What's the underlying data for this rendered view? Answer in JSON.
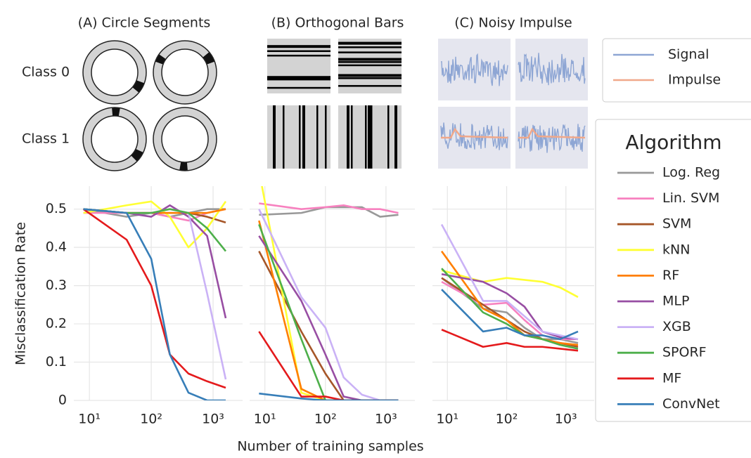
{
  "row_labels": [
    "Class 0",
    "Class 1"
  ],
  "illustration_legend": [
    {
      "name": "Signal",
      "color": "#8ea6d4"
    },
    {
      "name": "Impulse",
      "color": "#f0a88a"
    }
  ],
  "chart_data": [
    {
      "type": "line",
      "title": "(A) Circle Segments",
      "ylabel": "Misclassification Rate",
      "log_x": true,
      "grid": true,
      "x": [
        8,
        40,
        100,
        200,
        400,
        800,
        1600
      ],
      "xlim": [
        5.6,
        3000
      ],
      "ylim": [
        0,
        0.56
      ],
      "xticks": [
        {
          "value": 10,
          "label": "10¹"
        },
        {
          "value": 100,
          "label": "10²"
        },
        {
          "value": 1000,
          "label": "10³"
        }
      ],
      "yticks": [
        0,
        0.1,
        0.2,
        0.3,
        0.4,
        0.5
      ],
      "series": [
        {
          "name": "Log. Reg",
          "color": "#999999",
          "values": [
            0.5,
            0.48,
            0.49,
            0.48,
            0.49,
            0.5,
            0.5
          ]
        },
        {
          "name": "Lin. SVM",
          "color": "#f781bf",
          "values": [
            0.49,
            0.49,
            0.49,
            0.48,
            0.47,
            0.49,
            0.5
          ]
        },
        {
          "name": "SVM",
          "color": "#a65628",
          "values": [
            0.5,
            0.49,
            0.49,
            0.49,
            0.49,
            0.48,
            0.465
          ]
        },
        {
          "name": "kNN",
          "color": "#ffff33",
          "values": [
            0.49,
            0.51,
            0.52,
            0.48,
            0.4,
            0.45,
            0.52
          ]
        },
        {
          "name": "RF",
          "color": "#ff7f00",
          "values": [
            0.5,
            0.49,
            0.49,
            0.49,
            0.49,
            0.49,
            0.5
          ]
        },
        {
          "name": "MLP",
          "color": "#984ea3",
          "values": [
            0.5,
            0.49,
            0.48,
            0.51,
            0.48,
            0.43,
            0.215
          ]
        },
        {
          "name": "XGB",
          "color": "#cab2f6",
          "values": [
            0.5,
            0.49,
            0.49,
            0.5,
            0.49,
            0.28,
            0.055
          ]
        },
        {
          "name": "SPORF",
          "color": "#4daf4a",
          "values": [
            0.5,
            0.49,
            0.49,
            0.5,
            0.49,
            0.45,
            0.39
          ]
        },
        {
          "name": "MF",
          "color": "#e41a1c",
          "values": [
            0.5,
            0.42,
            0.3,
            0.12,
            0.07,
            0.05,
            0.033
          ]
        },
        {
          "name": "ConvNet",
          "color": "#377eb8",
          "values": [
            0.5,
            0.49,
            0.37,
            0.12,
            0.02,
            0.0,
            0.0
          ]
        }
      ]
    },
    {
      "type": "line",
      "title": "(B) Orthogonal Bars",
      "xlabel": "Number of training samples",
      "log_x": true,
      "grid": true,
      "x": [
        8,
        40,
        100,
        200,
        400,
        800,
        1600
      ],
      "xlim": [
        5.6,
        3000
      ],
      "ylim": [
        0,
        0.56
      ],
      "xticks": [
        {
          "value": 10,
          "label": "10¹"
        },
        {
          "value": 100,
          "label": "10²"
        },
        {
          "value": 1000,
          "label": "10³"
        }
      ],
      "yticks": [
        0,
        0.1,
        0.2,
        0.3,
        0.4,
        0.5
      ],
      "series": [
        {
          "name": "Log. Reg",
          "color": "#999999",
          "values": [
            0.485,
            0.49,
            0.505,
            0.505,
            0.505,
            0.48,
            0.485
          ]
        },
        {
          "name": "Lin. SVM",
          "color": "#f781bf",
          "values": [
            0.515,
            0.5,
            0.505,
            0.51,
            0.5,
            0.5,
            0.49
          ]
        },
        {
          "name": "SVM",
          "color": "#a65628",
          "values": [
            0.39,
            0.18,
            0.07,
            0.0,
            0.0,
            0.0,
            0.0
          ]
        },
        {
          "name": "kNN",
          "color": "#ffff33",
          "values": [
            0.6,
            0.02,
            0.0,
            0.0,
            0.0,
            0.0,
            0.0
          ]
        },
        {
          "name": "RF",
          "color": "#ff7f00",
          "values": [
            0.47,
            0.03,
            0.0,
            0.0,
            0.0,
            0.0,
            0.0
          ]
        },
        {
          "name": "MLP",
          "color": "#984ea3",
          "values": [
            0.43,
            0.26,
            0.12,
            0.01,
            0.0,
            0.0,
            0.0
          ]
        },
        {
          "name": "XGB",
          "color": "#cab2f6",
          "values": [
            0.5,
            0.27,
            0.19,
            0.06,
            0.015,
            0.0,
            0.0
          ]
        },
        {
          "name": "SPORF",
          "color": "#4daf4a",
          "values": [
            0.46,
            0.16,
            0.0,
            0.0,
            0.0,
            0.0,
            0.0
          ]
        },
        {
          "name": "MF",
          "color": "#e41a1c",
          "values": [
            0.18,
            0.01,
            0.01,
            0.0,
            0.0,
            0.0,
            0.0
          ]
        },
        {
          "name": "ConvNet",
          "color": "#377eb8",
          "values": [
            0.018,
            0.005,
            0.0,
            0.0,
            0.0,
            0.0,
            0.0
          ]
        }
      ]
    },
    {
      "type": "line",
      "title": "(C) Noisy Impulse",
      "legend_title": "Algorithm",
      "log_x": true,
      "grid": true,
      "x": [
        8,
        40,
        100,
        200,
        400,
        800,
        1600
      ],
      "xlim": [
        5.6,
        3000
      ],
      "ylim": [
        0,
        0.56
      ],
      "xticks": [
        {
          "value": 10,
          "label": "10¹"
        },
        {
          "value": 100,
          "label": "10²"
        },
        {
          "value": 1000,
          "label": "10³"
        }
      ],
      "yticks": [
        0,
        0.1,
        0.2,
        0.3,
        0.4,
        0.5
      ],
      "series": [
        {
          "name": "Log. Reg",
          "color": "#999999",
          "values": [
            0.32,
            0.24,
            0.23,
            0.19,
            0.16,
            0.16,
            0.15
          ]
        },
        {
          "name": "Lin. SVM",
          "color": "#f781bf",
          "values": [
            0.31,
            0.25,
            0.255,
            0.21,
            0.17,
            0.16,
            0.16
          ]
        },
        {
          "name": "SVM",
          "color": "#a65628",
          "values": [
            0.32,
            0.25,
            0.21,
            0.18,
            0.16,
            0.15,
            0.14
          ]
        },
        {
          "name": "kNN",
          "color": "#ffff33",
          "values": [
            0.34,
            0.31,
            0.32,
            0.315,
            0.31,
            0.295,
            0.27
          ]
        },
        {
          "name": "RF",
          "color": "#ff7f00",
          "values": [
            0.39,
            0.24,
            0.21,
            0.17,
            0.16,
            0.15,
            0.145
          ]
        },
        {
          "name": "MLP",
          "color": "#984ea3",
          "values": [
            0.33,
            0.31,
            0.28,
            0.245,
            0.18,
            0.165,
            0.16
          ]
        },
        {
          "name": "XGB",
          "color": "#cab2f6",
          "values": [
            0.46,
            0.26,
            0.26,
            0.22,
            0.18,
            0.17,
            0.16
          ]
        },
        {
          "name": "SPORF",
          "color": "#4daf4a",
          "values": [
            0.345,
            0.23,
            0.2,
            0.17,
            0.16,
            0.145,
            0.135
          ]
        },
        {
          "name": "MF",
          "color": "#e41a1c",
          "values": [
            0.185,
            0.14,
            0.15,
            0.14,
            0.14,
            0.135,
            0.13
          ]
        },
        {
          "name": "ConvNet",
          "color": "#377eb8",
          "values": [
            0.29,
            0.18,
            0.19,
            0.17,
            0.17,
            0.16,
            0.18
          ]
        }
      ]
    }
  ]
}
